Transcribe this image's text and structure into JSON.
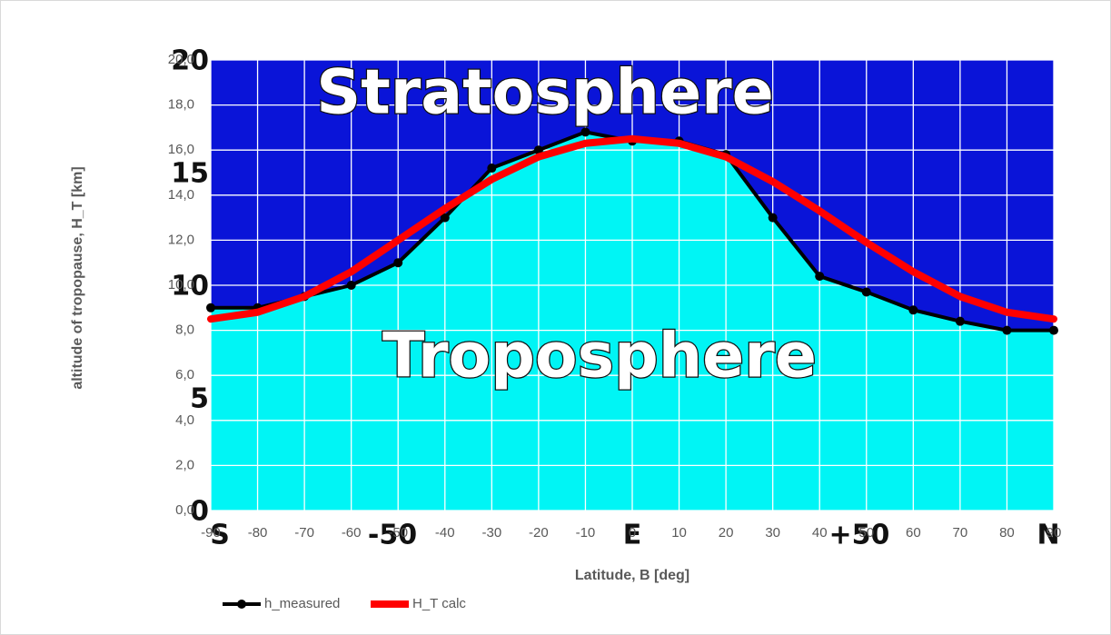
{
  "chart_data": {
    "type": "line",
    "xlabel": "Latitude, B [deg]",
    "ylabel": "altitude of tropopause, H_T [km]",
    "x": [
      -90,
      -80,
      -70,
      -60,
      -50,
      -40,
      -30,
      -20,
      -10,
      0,
      10,
      20,
      30,
      40,
      50,
      60,
      70,
      80,
      90
    ],
    "series": [
      {
        "name": "h_measured",
        "color": "#000000",
        "values": [
          9.0,
          9.0,
          9.5,
          10.0,
          11.0,
          13.0,
          15.2,
          16.0,
          16.8,
          16.4,
          16.4,
          15.8,
          13.0,
          10.4,
          9.7,
          8.9,
          8.4,
          8.0,
          8.0
        ]
      },
      {
        "name": "H_T calc",
        "color": "#ff0000",
        "values": [
          8.5,
          8.8,
          9.5,
          10.6,
          12.0,
          13.4,
          14.7,
          15.7,
          16.3,
          16.5,
          16.3,
          15.7,
          14.6,
          13.3,
          11.9,
          10.6,
          9.5,
          8.8,
          8.5
        ]
      }
    ],
    "xlim": [
      -90,
      90
    ],
    "xticks": [
      -90,
      -80,
      -70,
      -60,
      -50,
      -40,
      -30,
      -20,
      -10,
      0,
      10,
      20,
      30,
      40,
      50,
      60,
      70,
      80,
      90
    ],
    "ylim": [
      0,
      20
    ],
    "yticks": [
      {
        "value": 0,
        "label": "0,0"
      },
      {
        "value": 2,
        "label": "2,0"
      },
      {
        "value": 4,
        "label": "4,0"
      },
      {
        "value": 6,
        "label": "6,0"
      },
      {
        "value": 8,
        "label": "8,0"
      },
      {
        "value": 10,
        "label": "10,0"
      },
      {
        "value": 12,
        "label": "12,0"
      },
      {
        "value": 14,
        "label": "14,0"
      },
      {
        "value": 16,
        "label": "16,0"
      },
      {
        "value": 18,
        "label": "18,0"
      },
      {
        "value": 20,
        "label": "20,0"
      }
    ],
    "grid": true,
    "legend": "bottom-left",
    "background_labels": {
      "regions": [
        "Stratosphere",
        "Troposphere"
      ],
      "y_marks": [
        "20",
        "15",
        "10",
        "5",
        "0"
      ],
      "x_marks": [
        "S",
        "-50",
        "E",
        "+50",
        "N"
      ]
    }
  }
}
